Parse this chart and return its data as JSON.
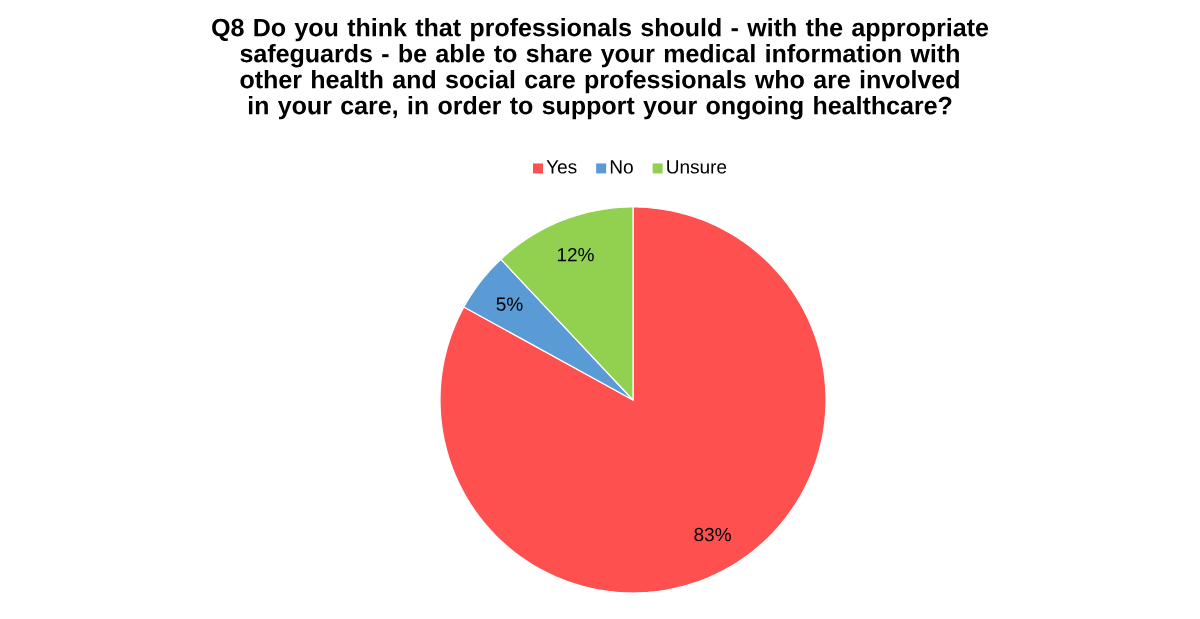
{
  "chart_data": {
    "type": "pie",
    "title": "Q8 Do you think that professionals should - with the appropriate safeguards - be able to share your medical information with other health and social care professionals who are involved in your care, in order to support your ongoing healthcare?",
    "categories": [
      "Yes",
      "No",
      "Unsure"
    ],
    "values": [
      83,
      5,
      12
    ],
    "value_labels": [
      "83%",
      "5%",
      "12%"
    ],
    "colors": [
      "#ff5050",
      "#5b9bd5",
      "#92d050"
    ],
    "legend": "top"
  }
}
